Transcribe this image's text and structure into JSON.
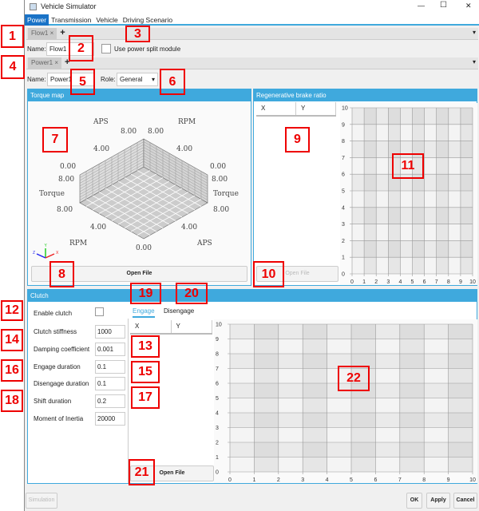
{
  "window": {
    "title": "Vehicle Simulator",
    "controls": [
      "—",
      "☐",
      "✕"
    ]
  },
  "menu": {
    "items": [
      "Power",
      "Transmission",
      "Vehicle",
      "Driving Scenario"
    ],
    "selected": "Power"
  },
  "flow": {
    "tab": "Flow1",
    "close": "×",
    "add": "+",
    "name_label": "Name:",
    "name_value": "Flow1",
    "split_label": "Use power split module",
    "split_checked": false,
    "dropdown": "▾"
  },
  "power": {
    "tab": "Power1",
    "close": "×",
    "add": "+",
    "name_label": "Name:",
    "name_value": "Power1",
    "role_label": "Role:",
    "role_value": "General",
    "dropdown": "▾"
  },
  "torque_map": {
    "title": "Torque map",
    "open_file": "Open File",
    "axis_labels": {
      "aps": "APS",
      "rpm": "RPM",
      "torque": "Torque"
    },
    "ticks": [
      "0.00",
      "4.00",
      "8.00"
    ],
    "axes_gizmo": {
      "x": "X",
      "y": "Y",
      "z": "Z"
    }
  },
  "regen": {
    "title": "Regenerative brake ratio",
    "columns": [
      "X",
      "Y"
    ],
    "open_file": "Open File",
    "chart": {
      "x_ticks": [
        "0",
        "1",
        "2",
        "3",
        "4",
        "5",
        "6",
        "7",
        "8",
        "9",
        "10"
      ],
      "y_ticks": [
        "0",
        "1",
        "2",
        "3",
        "4",
        "5",
        "6",
        "7",
        "8",
        "9",
        "10"
      ]
    }
  },
  "clutch": {
    "title": "Clutch",
    "enable_label": "Enable clutch",
    "enable_checked": false,
    "fields": [
      {
        "label": "Clutch stiffness",
        "value": "1000"
      },
      {
        "label": "Damping coefficient",
        "value": "0.001"
      },
      {
        "label": "Engage duration",
        "value": "0.1"
      },
      {
        "label": "Disengage duration",
        "value": "0.1"
      },
      {
        "label": "Shift duration",
        "value": "0.2"
      },
      {
        "label": "Moment of Inertia",
        "value": "20000"
      }
    ],
    "tabs": [
      "Engage",
      "Disengage"
    ],
    "active_tab": "Engage",
    "columns": [
      "X",
      "Y"
    ],
    "open_file": "Open File",
    "chart": {
      "x_ticks": [
        "0",
        "1",
        "2",
        "3",
        "4",
        "5",
        "6",
        "7",
        "8",
        "9",
        "10"
      ],
      "y_ticks": [
        "0",
        "1",
        "2",
        "3",
        "4",
        "5",
        "6",
        "7",
        "8",
        "9",
        "10"
      ]
    }
  },
  "footer": {
    "simulation": "Simulation",
    "ok": "OK",
    "apply": "Apply",
    "cancel": "Cancel"
  },
  "annotations": [
    "1",
    "2",
    "3",
    "4",
    "5",
    "6",
    "7",
    "8",
    "9",
    "10",
    "11",
    "12",
    "13",
    "14",
    "15",
    "16",
    "17",
    "18",
    "19",
    "20",
    "21",
    "22"
  ]
}
